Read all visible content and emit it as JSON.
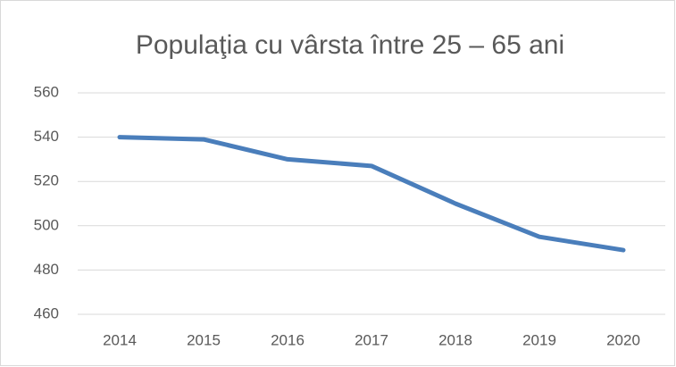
{
  "chart_data": {
    "type": "line",
    "title": "Populaţia cu vârsta între 25 – 65 ani",
    "categories": [
      "2014",
      "2015",
      "2016",
      "2017",
      "2018",
      "2019",
      "2020"
    ],
    "values": [
      540,
      539,
      530,
      527,
      510,
      495,
      489
    ],
    "color": "#4a7ebb",
    "ylim": [
      460,
      560
    ],
    "yticks": [
      460,
      480,
      500,
      520,
      540,
      560
    ],
    "grid": true
  }
}
